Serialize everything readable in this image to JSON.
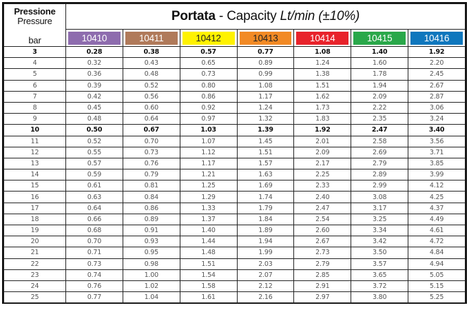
{
  "header": {
    "pressure_it": "Pressione",
    "pressure_en": "Pressure",
    "unit": "bar",
    "title_bold": "Portata",
    "title_rest": " - Capacity ",
    "title_italic": "Lt/min (±10%)"
  },
  "columns": [
    {
      "code": "10410",
      "color": "#8e6cae",
      "text_color": "#ffffff"
    },
    {
      "code": "10411",
      "color": "#b07a5a",
      "text_color": "#ffffff"
    },
    {
      "code": "10412",
      "color": "#fff200",
      "text_color": "#222222"
    },
    {
      "code": "10413",
      "color": "#f28a25",
      "text_color": "#222222"
    },
    {
      "code": "10414",
      "color": "#e8232b",
      "text_color": "#ffffff"
    },
    {
      "code": "10415",
      "color": "#2aa84a",
      "text_color": "#ffffff"
    },
    {
      "code": "10416",
      "color": "#0f77bd",
      "text_color": "#ffffff"
    }
  ],
  "rows": [
    {
      "bar": "3",
      "bold": true,
      "values": [
        "0.28",
        "0.38",
        "0.57",
        "0.77",
        "1.08",
        "1.40",
        "1.92"
      ]
    },
    {
      "bar": "4",
      "values": [
        "0.32",
        "0.43",
        "0.65",
        "0.89",
        "1.24",
        "1.60",
        "2.20"
      ]
    },
    {
      "bar": "5",
      "values": [
        "0.36",
        "0.48",
        "0.73",
        "0.99",
        "1.38",
        "1.78",
        "2.45"
      ]
    },
    {
      "bar": "6",
      "values": [
        "0.39",
        "0.52",
        "0.80",
        "1.08",
        "1.51",
        "1.94",
        "2.67"
      ]
    },
    {
      "bar": "7",
      "values": [
        "0.42",
        "0.56",
        "0.86",
        "1.17",
        "1.62",
        "2.09",
        "2.87"
      ]
    },
    {
      "bar": "8",
      "values": [
        "0.45",
        "0.60",
        "0.92",
        "1.24",
        "1.73",
        "2.22",
        "3.06"
      ]
    },
    {
      "bar": "9",
      "values": [
        "0.48",
        "0.64",
        "0.97",
        "1.32",
        "1.83",
        "2.35",
        "3.24"
      ]
    },
    {
      "bar": "10",
      "bold": true,
      "values": [
        "0.50",
        "0.67",
        "1.03",
        "1.39",
        "1.92",
        "2.47",
        "3.40"
      ]
    },
    {
      "bar": "11",
      "values": [
        "0.52",
        "0.70",
        "1.07",
        "1.45",
        "2.01",
        "2.58",
        "3.56"
      ]
    },
    {
      "bar": "12",
      "values": [
        "0.55",
        "0.73",
        "1.12",
        "1.51",
        "2.09",
        "2.69",
        "3.71"
      ]
    },
    {
      "bar": "13",
      "values": [
        "0.57",
        "0.76",
        "1.17",
        "1.57",
        "2.17",
        "2.79",
        "3.85"
      ]
    },
    {
      "bar": "14",
      "values": [
        "0.59",
        "0.79",
        "1.21",
        "1.63",
        "2.25",
        "2.89",
        "3.99"
      ]
    },
    {
      "bar": "15",
      "values": [
        "0.61",
        "0.81",
        "1.25",
        "1.69",
        "2.33",
        "2.99",
        "4.12"
      ]
    },
    {
      "bar": "16",
      "values": [
        "0.63",
        "0.84",
        "1.29",
        "1.74",
        "2.40",
        "3.08",
        "4.25"
      ]
    },
    {
      "bar": "17",
      "values": [
        "0.64",
        "0.86",
        "1.33",
        "1.79",
        "2.47",
        "3.17",
        "4.37"
      ]
    },
    {
      "bar": "18",
      "values": [
        "0.66",
        "0.89",
        "1.37",
        "1.84",
        "2.54",
        "3.25",
        "4.49"
      ]
    },
    {
      "bar": "19",
      "values": [
        "0.68",
        "0.91",
        "1.40",
        "1.89",
        "2.60",
        "3.34",
        "4.61"
      ]
    },
    {
      "bar": "20",
      "values": [
        "0.70",
        "0.93",
        "1.44",
        "1.94",
        "2.67",
        "3.42",
        "4.72"
      ]
    },
    {
      "bar": "21",
      "values": [
        "0.71",
        "0.95",
        "1.48",
        "1.99",
        "2.73",
        "3.50",
        "4.84"
      ]
    },
    {
      "bar": "22",
      "values": [
        "0.73",
        "0.98",
        "1.51",
        "2.03",
        "2.79",
        "3.57",
        "4.94"
      ]
    },
    {
      "bar": "23",
      "values": [
        "0.74",
        "1.00",
        "1.54",
        "2.07",
        "2.85",
        "3.65",
        "5.05"
      ]
    },
    {
      "bar": "24",
      "values": [
        "0.76",
        "1.02",
        "1.58",
        "2.12",
        "2.91",
        "3.72",
        "5.15"
      ]
    },
    {
      "bar": "25",
      "values": [
        "0.77",
        "1.04",
        "1.61",
        "2.16",
        "2.97",
        "3.80",
        "5.25"
      ]
    }
  ]
}
